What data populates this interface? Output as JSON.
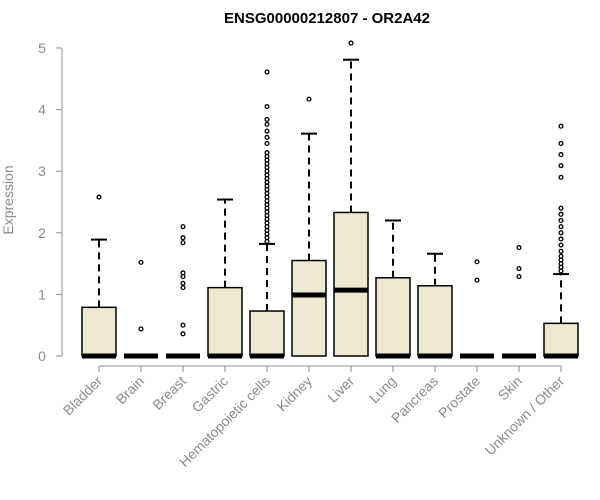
{
  "chart_data": {
    "type": "box",
    "title": "ENSG00000212807 - OR2A42",
    "xlabel": "",
    "ylabel": "Expression",
    "ylim": [
      0,
      5
    ],
    "yticks": [
      0,
      1,
      2,
      3,
      4,
      5
    ],
    "grid": false,
    "colors": {
      "box_fill": "#efe8d0",
      "box_stroke": "#000000",
      "median": "#000000",
      "axis": "#8c8c8c"
    },
    "categories": [
      "Bladder",
      "Brain",
      "Breast",
      "Gastric",
      "Hematopoietic cells",
      "Kidney",
      "Liver",
      "Lung",
      "Pancreas",
      "Prostate",
      "Skin",
      "Unknown / Other"
    ],
    "boxes": [
      {
        "q1": 0,
        "median": 0,
        "q3": 0.79,
        "whisker_low": 0,
        "whisker_high": 1.89,
        "outliers": [
          2.58
        ]
      },
      {
        "q1": 0,
        "median": 0,
        "q3": 0,
        "whisker_low": 0,
        "whisker_high": 0,
        "outliers": [
          0.44,
          1.52
        ]
      },
      {
        "q1": 0,
        "median": 0,
        "q3": 0,
        "whisker_low": 0,
        "whisker_high": 0,
        "outliers": [
          0.36,
          0.5,
          1.11,
          1.18,
          1.29,
          1.35,
          1.84,
          1.92,
          2.1
        ]
      },
      {
        "q1": 0,
        "median": 0,
        "q3": 1.11,
        "whisker_low": 0,
        "whisker_high": 2.54,
        "outliers": []
      },
      {
        "q1": 0,
        "median": 0,
        "q3": 0.73,
        "whisker_low": 0,
        "whisker_high": 1.82,
        "outliers": [
          1.86,
          1.92,
          1.98,
          2.04,
          2.1,
          2.16,
          2.22,
          2.28,
          2.34,
          2.4,
          2.46,
          2.52,
          2.58,
          2.64,
          2.7,
          2.76,
          2.82,
          2.88,
          2.94,
          3.0,
          3.06,
          3.12,
          3.18,
          3.24,
          3.3,
          3.45,
          3.55,
          3.65,
          3.76,
          3.84,
          4.05,
          4.61
        ]
      },
      {
        "q1": 0,
        "median": 0.99,
        "q3": 1.55,
        "whisker_low": 0,
        "whisker_high": 3.61,
        "outliers": [
          4.17
        ]
      },
      {
        "q1": 0,
        "median": 1.07,
        "q3": 2.33,
        "whisker_low": 0,
        "whisker_high": 4.81,
        "outliers": [
          5.08
        ]
      },
      {
        "q1": 0,
        "median": 0,
        "q3": 1.27,
        "whisker_low": 0,
        "whisker_high": 2.2,
        "outliers": []
      },
      {
        "q1": 0,
        "median": 0,
        "q3": 1.14,
        "whisker_low": 0,
        "whisker_high": 1.66,
        "outliers": []
      },
      {
        "q1": 0,
        "median": 0,
        "q3": 0,
        "whisker_low": 0,
        "whisker_high": 0,
        "outliers": [
          1.23,
          1.53
        ]
      },
      {
        "q1": 0,
        "median": 0,
        "q3": 0,
        "whisker_low": 0,
        "whisker_high": 0,
        "outliers": [
          1.29,
          1.42,
          1.76
        ]
      },
      {
        "q1": 0,
        "median": 0,
        "q3": 0.53,
        "whisker_low": 0,
        "whisker_high": 1.33,
        "outliers": [
          1.38,
          1.44,
          1.5,
          1.56,
          1.62,
          1.7,
          1.8,
          1.9,
          2.0,
          2.1,
          2.2,
          2.3,
          2.4,
          2.9,
          3.09,
          3.27,
          3.45,
          3.73
        ]
      }
    ]
  }
}
